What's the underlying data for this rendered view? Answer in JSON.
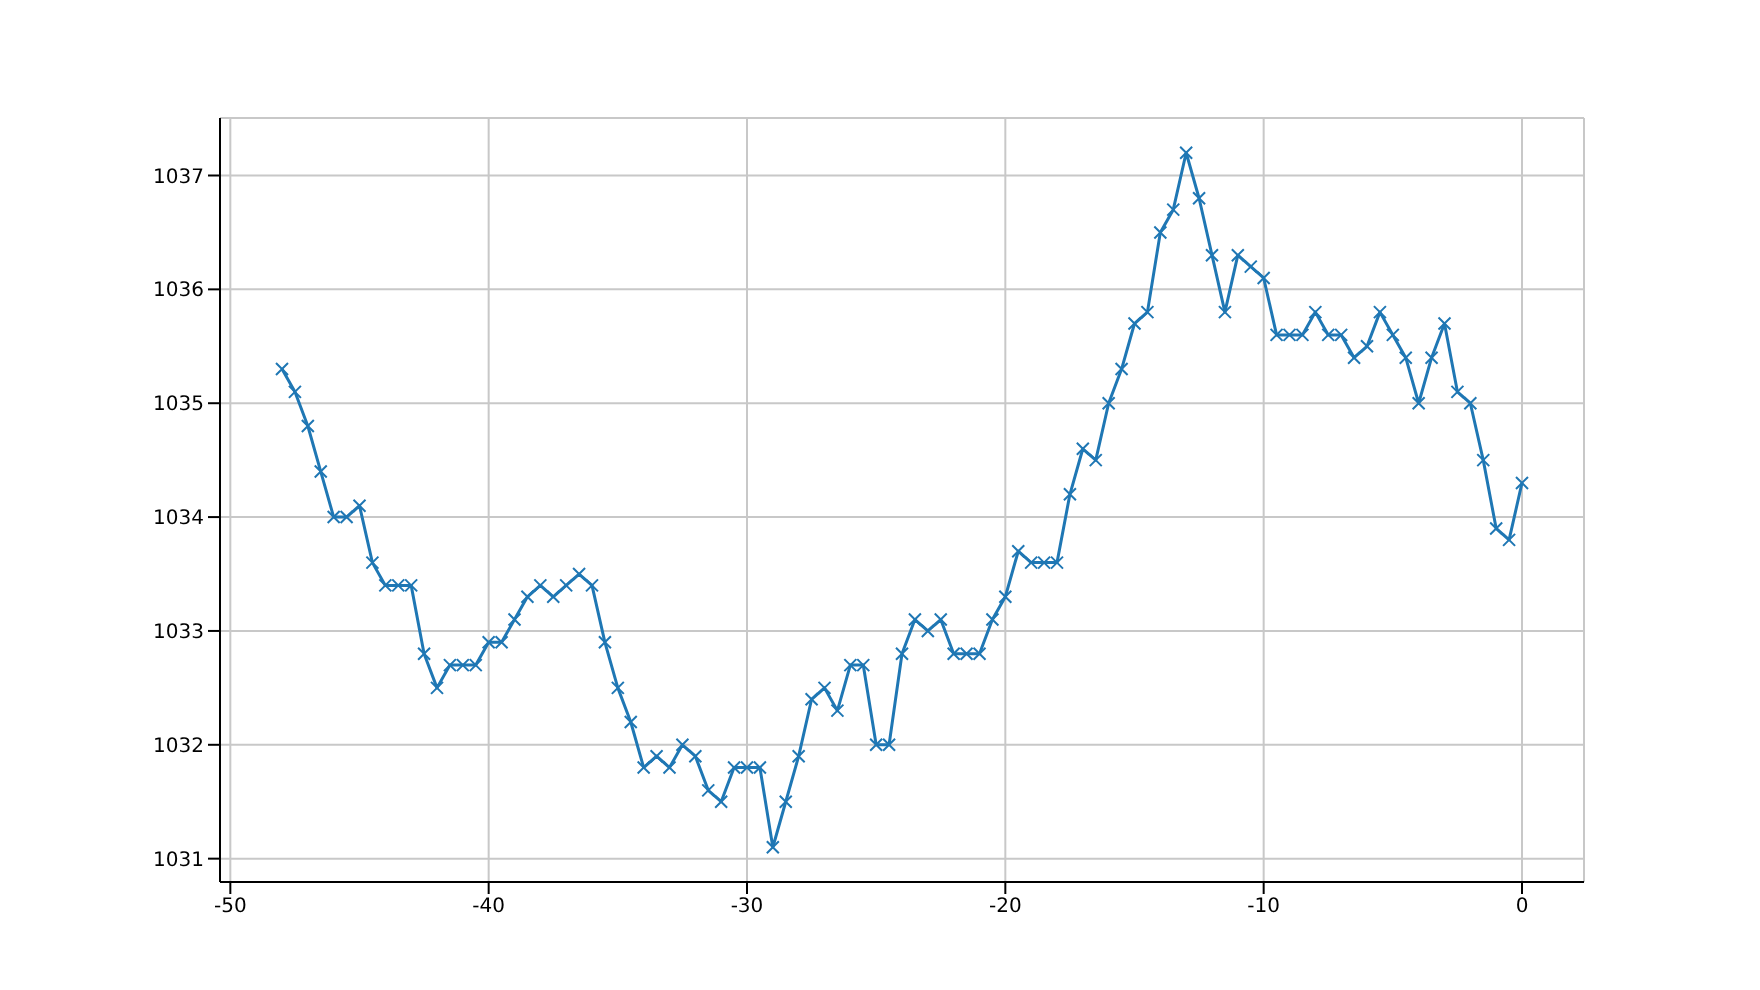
{
  "chart_data": {
    "type": "line",
    "x": [
      -48,
      -47.5,
      -47,
      -46.5,
      -46,
      -45.5,
      -45,
      -44.5,
      -44,
      -43.5,
      -43,
      -42.5,
      -42,
      -41.5,
      -41,
      -40.5,
      -40,
      -39.5,
      -39,
      -38.5,
      -38,
      -37.5,
      -37,
      -36.5,
      -36,
      -35.5,
      -35,
      -34.5,
      -34,
      -33.5,
      -33,
      -32.5,
      -32,
      -31.5,
      -31,
      -30.5,
      -30,
      -29.5,
      -29,
      -28.5,
      -28,
      -27.5,
      -27,
      -26.5,
      -26,
      -25.5,
      -25,
      -24.5,
      -24,
      -23.5,
      -23,
      -22.5,
      -22,
      -21.5,
      -21,
      -20.5,
      -20,
      -19.5,
      -19,
      -18.5,
      -18,
      -17.5,
      -17,
      -16.5,
      -16,
      -15.5,
      -15,
      -14.5,
      -14,
      -13.5,
      -13,
      -12.5,
      -12,
      -11.5,
      -11,
      -10.5,
      -10,
      -9.5,
      -9,
      -8.5,
      -8,
      -7.5,
      -7,
      -6.5,
      -6,
      -5.5,
      -5,
      -4.5,
      -4,
      -3.5,
      -3,
      -2.5,
      -2,
      -1.5,
      -1,
      -0.5,
      0
    ],
    "series": [
      {
        "color": "#1f77b4",
        "values": [
          1035.3,
          1035.1,
          1034.8,
          1034.4,
          1034.0,
          1034.0,
          1034.1,
          1033.6,
          1033.4,
          1033.4,
          1033.4,
          1032.8,
          1032.5,
          1032.7,
          1032.7,
          1032.7,
          1032.9,
          1032.9,
          1033.1,
          1033.3,
          1033.4,
          1033.3,
          1033.4,
          1033.5,
          1033.4,
          1032.9,
          1032.5,
          1032.2,
          1031.8,
          1031.9,
          1031.8,
          1032.0,
          1031.9,
          1031.6,
          1031.5,
          1031.8,
          1031.8,
          1031.8,
          1031.1,
          1031.5,
          1031.9,
          1032.4,
          1032.5,
          1032.3,
          1032.7,
          1032.7,
          1032.0,
          1032.0,
          1032.8,
          1033.1,
          1033.0,
          1033.1,
          1032.8,
          1032.8,
          1032.8,
          1033.1,
          1033.3,
          1033.7,
          1033.6,
          1033.6,
          1033.6,
          1034.2,
          1034.6,
          1034.5,
          1035.0,
          1035.3,
          1035.7,
          1035.8,
          1036.5,
          1036.7,
          1037.2,
          1036.8,
          1036.3,
          1035.8,
          1036.3,
          1036.2,
          1036.1,
          1035.6,
          1035.6,
          1035.6,
          1035.8,
          1035.6,
          1035.6,
          1035.4,
          1035.5,
          1035.8,
          1035.6,
          1035.4,
          1035.0,
          1035.4,
          1035.7,
          1035.1,
          1035.0,
          1034.5,
          1033.9,
          1033.8,
          1034.3
        ]
      }
    ],
    "xlim": [
      -50.4,
      2.4
    ],
    "xticks": [
      -50,
      -40,
      -30,
      -20,
      -10,
      0
    ],
    "ylim": [
      1030.795,
      1037.505
    ],
    "yticks": [
      1031,
      1032,
      1033,
      1034,
      1035,
      1036,
      1037
    ],
    "grid": true,
    "marker": "cross",
    "line_style": "solid",
    "legend": false
  }
}
